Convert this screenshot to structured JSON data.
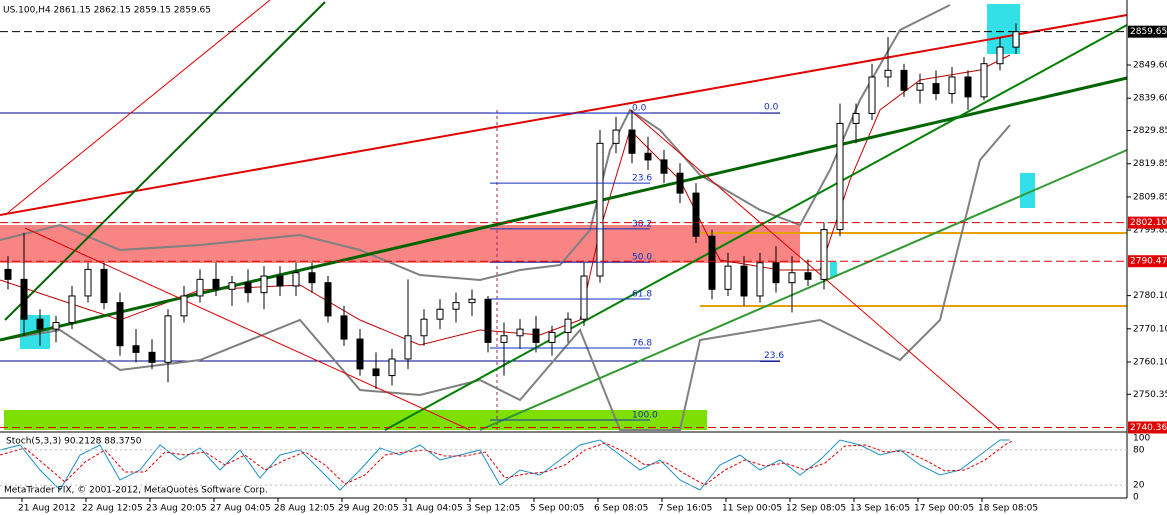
{
  "chart_data": {
    "type": "candlestick",
    "title": "US.100,H4  2861.15 2862.15 2859.15 2859.65",
    "categories": [
      null,
      "21 Aug 2012",
      null,
      null,
      null,
      "22 Aug 12:05",
      null,
      null,
      null,
      "23 Aug 20:05",
      null,
      null,
      null,
      "27 Aug 04:05",
      null,
      null,
      null,
      "28 Aug 12:05",
      null,
      null,
      null,
      "29 Aug 20:05",
      null,
      null,
      null,
      "31 Aug 04:05",
      null,
      null,
      null,
      "3 Sep 12:05",
      null,
      null,
      null,
      "5 Sep 00:05",
      null,
      null,
      null,
      "6 Sep 08:05",
      null,
      null,
      null,
      "7 Sep 16:05",
      null,
      null,
      null,
      "11 Sep 00:05",
      null,
      null,
      null,
      "12 Sep 08:05",
      null,
      null,
      null,
      "13 Sep 16:05",
      null,
      null,
      null,
      "17 Sep 00:05",
      null,
      null,
      null,
      "18 Sep 08:05",
      null,
      null
    ],
    "open": [
      2788,
      2785,
      2773,
      2770,
      2772,
      2780,
      2788,
      2778,
      2765,
      2763,
      2760,
      2774,
      2780,
      2785,
      2782,
      2784,
      2781,
      2786,
      2783,
      2787,
      2784,
      2774,
      2767,
      2758,
      2756,
      2761,
      2768,
      2773,
      2776,
      2778,
      2779,
      2766,
      2768,
      2770,
      2766,
      2769,
      2773,
      2786,
      2826,
      2830,
      2823,
      2821,
      2817,
      2811,
      2798,
      2782,
      2789,
      2780,
      2790,
      2784,
      2787,
      2785,
      2800,
      2832,
      2835,
      2846,
      2848,
      2842,
      2844,
      2841,
      2846,
      2840,
      2850,
      2855
    ],
    "high": [
      2792,
      2799,
      2776,
      2774,
      2783,
      2790,
      2790,
      2781,
      2770,
      2767,
      2776,
      2783,
      2788,
      2790,
      2786,
      2788,
      2789,
      2789,
      2790,
      2790,
      2786,
      2777,
      2770,
      2763,
      2764,
      2785,
      2776,
      2779,
      2781,
      2782,
      2780,
      2772,
      2773,
      2774,
      2771,
      2775,
      2790,
      2830,
      2834,
      2836,
      2828,
      2824,
      2820,
      2814,
      2800,
      2793,
      2792,
      2793,
      2795,
      2792,
      2791,
      2802,
      2838,
      2838,
      2850,
      2858,
      2850,
      2847,
      2848,
      2849,
      2848,
      2852,
      2858,
      2862.15
    ],
    "low": [
      2782,
      2768,
      2765,
      2766,
      2770,
      2778,
      2776,
      2762,
      2760,
      2758,
      2754,
      2772,
      2778,
      2780,
      2777,
      2778,
      2776,
      2780,
      2780,
      2781,
      2772,
      2765,
      2756,
      2752,
      2753,
      2758,
      2765,
      2770,
      2772,
      2774,
      2763,
      2756,
      2764,
      2763,
      2762,
      2766,
      2771,
      2784,
      2823,
      2820,
      2818,
      2814,
      2808,
      2796,
      2779,
      2780,
      2777,
      2778,
      2781,
      2775,
      2783,
      2782,
      2798,
      2826,
      2833,
      2843,
      2840,
      2838,
      2839,
      2838,
      2836,
      2839,
      2848,
      2853
    ],
    "close": [
      2785,
      2773,
      2770,
      2772,
      2780,
      2788,
      2778,
      2765,
      2763,
      2760,
      2774,
      2780,
      2785,
      2782,
      2784,
      2781,
      2786,
      2783,
      2787,
      2784,
      2774,
      2767,
      2758,
      2756,
      2761,
      2768,
      2773,
      2776,
      2778,
      2779,
      2766,
      2768,
      2770,
      2766,
      2769,
      2773,
      2786,
      2826,
      2830,
      2823,
      2821,
      2817,
      2811,
      2798,
      2782,
      2789,
      2780,
      2790,
      2784,
      2787,
      2785,
      2800,
      2832,
      2835,
      2846,
      2848,
      2842,
      2844,
      2841,
      2846,
      2840,
      2850,
      2855,
      2859.65
    ],
    "ylim": [
      2739.6,
      2869.2
    ],
    "yticks": [
      {
        "value": 2849.6,
        "label": "2849.60"
      },
      {
        "value": 2839.6,
        "label": "2839.60"
      },
      2829.85,
      2819.85,
      2809.85,
      2799.85,
      {
        "value": 2780.1,
        "label": "2780.10"
      },
      {
        "value": 2770.1,
        "label": "2770.10"
      },
      {
        "value": 2760.1,
        "label": "2760.10"
      },
      2750.35
    ],
    "price_marks": [
      {
        "value": 2859.65,
        "color": "#000000"
      },
      {
        "value": 2802.1,
        "label": "2802.10",
        "color": "#e00000"
      },
      2790.47,
      2740.36
    ],
    "fib_labels": [
      {
        "value": 2835.1,
        "label": "0.0"
      },
      {
        "value": 2814.0,
        "label": "23.6"
      },
      {
        "value": 2800.2,
        "label": "38.2"
      },
      {
        "value": 2790.2,
        "label": "50.0"
      },
      {
        "value": 2779.1,
        "label": "61.8"
      },
      {
        "value": 2764.3,
        "label": "76.8"
      },
      {
        "value": 2742.6,
        "label": "100.0"
      }
    ],
    "fib2_labels": [
      {
        "value": 2835.1,
        "label": "0.0"
      },
      {
        "value": 2760.3,
        "label": "23.6"
      }
    ],
    "stoch": {
      "title": "Stoch(5,3,3) 90.2128 88.3750",
      "ylim": [
        0,
        100
      ],
      "yticks": [
        100,
        80,
        20,
        0
      ]
    },
    "footer": "MetaTrader FIX, © 2001-2012, MetaQuotes Software Corp."
  }
}
